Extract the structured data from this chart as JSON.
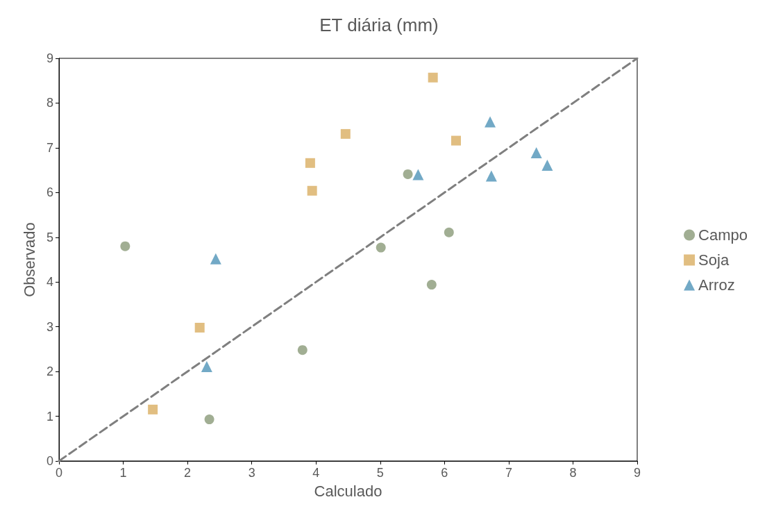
{
  "chart_data": {
    "type": "scatter",
    "title": "ET diária (mm)",
    "xlabel": "Calculado",
    "ylabel": "Observado",
    "xlim": [
      0,
      9
    ],
    "xticks": [
      0,
      1,
      2,
      3,
      4,
      5,
      6,
      7,
      8,
      9
    ],
    "ylim": [
      0,
      9
    ],
    "yticks": [
      0,
      1,
      2,
      3,
      4,
      5,
      6,
      7,
      8,
      9
    ],
    "grid": false,
    "legend": "right",
    "series": [
      {
        "name": "Campo",
        "color": "#8a9a78",
        "marker": "circle",
        "x": [
          1.03,
          2.34,
          3.79,
          5.01,
          5.43,
          5.8,
          6.07
        ],
        "values": [
          4.8,
          0.93,
          2.48,
          4.77,
          6.41,
          3.94,
          5.11
        ]
      },
      {
        "name": "Soja",
        "color": "#d9ae62",
        "marker": "square",
        "x": [
          1.46,
          2.19,
          3.91,
          3.94,
          4.46,
          5.82,
          6.18
        ],
        "values": [
          1.15,
          2.98,
          6.66,
          6.04,
          7.31,
          8.57,
          7.16
        ]
      },
      {
        "name": "Arroz",
        "color": "#4f94b8",
        "marker": "triangle",
        "x": [
          2.44,
          2.3,
          5.59,
          6.71,
          6.73,
          7.43,
          7.6
        ],
        "values": [
          4.52,
          2.11,
          6.4,
          7.58,
          6.37,
          6.89,
          6.61
        ]
      },
      {
        "type": "line",
        "color": "#7f7f7f",
        "marker": "none",
        "line_style": "dashed",
        "x": [
          0,
          9
        ],
        "values": [
          0,
          9
        ]
      }
    ]
  }
}
